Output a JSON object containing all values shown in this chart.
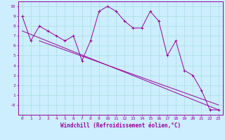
{
  "xlabel": "Windchill (Refroidissement éolien,°C)",
  "ylabel": "",
  "background_color": "#cceeff",
  "line_color": "#990099",
  "grid_color": "#aadddd",
  "x_data": [
    0,
    1,
    2,
    3,
    4,
    5,
    6,
    7,
    8,
    9,
    10,
    11,
    12,
    13,
    14,
    15,
    16,
    17,
    18,
    19,
    20,
    21,
    22,
    23
  ],
  "y_data": [
    9,
    6.5,
    8,
    7.5,
    7,
    6.5,
    7,
    4.5,
    6.5,
    9.5,
    10,
    9.5,
    8.5,
    7.8,
    7.8,
    9.5,
    8.5,
    5,
    6.5,
    3.5,
    3,
    1.5,
    -0.5,
    -0.5
  ],
  "trend1_x": [
    0,
    23
  ],
  "trend1_y": [
    7.5,
    -0.5
  ],
  "trend2_x": [
    2,
    23
  ],
  "trend2_y": [
    6.5,
    0.0
  ],
  "xlim": [
    -0.5,
    23.5
  ],
  "ylim": [
    -1,
    10.5
  ],
  "xticks": [
    0,
    1,
    2,
    3,
    4,
    5,
    6,
    7,
    8,
    9,
    10,
    11,
    12,
    13,
    14,
    15,
    16,
    17,
    18,
    19,
    20,
    21,
    22,
    23
  ],
  "yticks": [
    0,
    1,
    2,
    3,
    4,
    5,
    6,
    7,
    8,
    9,
    10
  ],
  "tick_fontsize": 4.5,
  "xlabel_fontsize": 5.5
}
